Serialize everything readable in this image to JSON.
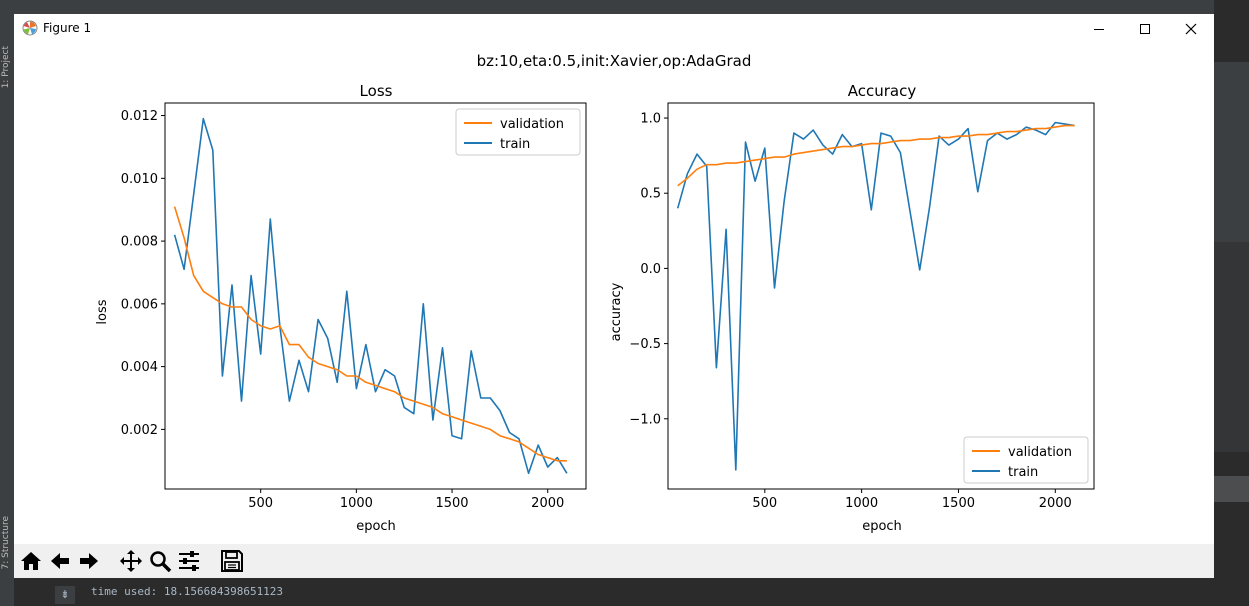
{
  "window": {
    "title": "Figure 1"
  },
  "ide": {
    "left_label_top": "1: Project",
    "left_label_bottom": "7: Structure",
    "console_text": "time used: 18.156684398651123"
  },
  "figure": {
    "suptitle": "bz:10,eta:0.5,init:Xavier,op:AdaGrad"
  },
  "colors": {
    "validation": "#ff7f0e",
    "train": "#1f77b4"
  },
  "toolbar": {
    "icons": [
      "home-icon",
      "back-arrow-icon",
      "forward-arrow-icon",
      "pan-icon",
      "zoom-icon",
      "subplots-icon",
      "save-icon"
    ]
  },
  "chart_data": [
    {
      "type": "line",
      "title": "Loss",
      "xlabel": "epoch",
      "ylabel": "loss",
      "xlim": [
        0,
        2200
      ],
      "ylim": [
        0.0001,
        0.0124
      ],
      "xticks": [
        500,
        1000,
        1500,
        2000
      ],
      "yticks": [
        0.002,
        0.004,
        0.006,
        0.008,
        0.01,
        0.012
      ],
      "ytick_labels": [
        "0.002",
        "0.004",
        "0.006",
        "0.008",
        "0.010",
        "0.012"
      ],
      "grid": false,
      "legend": "upper right",
      "series": [
        {
          "name": "validation",
          "x": [
            50,
            100,
            150,
            200,
            250,
            300,
            350,
            400,
            450,
            500,
            550,
            600,
            650,
            700,
            750,
            800,
            850,
            900,
            950,
            1000,
            1050,
            1100,
            1150,
            1200,
            1250,
            1300,
            1350,
            1400,
            1450,
            1500,
            1550,
            1600,
            1650,
            1700,
            1750,
            1800,
            1850,
            1900,
            1950,
            2000,
            2050,
            2100
          ],
          "values": [
            0.0091,
            0.0081,
            0.0069,
            0.0064,
            0.0062,
            0.006,
            0.0059,
            0.0059,
            0.0055,
            0.0053,
            0.0052,
            0.0053,
            0.0047,
            0.0047,
            0.0043,
            0.0041,
            0.004,
            0.0039,
            0.0037,
            0.0037,
            0.0035,
            0.0034,
            0.0033,
            0.0032,
            0.003,
            0.0029,
            0.0028,
            0.0027,
            0.0025,
            0.0024,
            0.0023,
            0.0022,
            0.0021,
            0.002,
            0.0018,
            0.0017,
            0.0016,
            0.0014,
            0.0012,
            0.0011,
            0.001,
            0.001
          ]
        },
        {
          "name": "train",
          "x": [
            50,
            100,
            150,
            200,
            250,
            300,
            350,
            400,
            450,
            500,
            550,
            600,
            650,
            700,
            750,
            800,
            850,
            900,
            950,
            1000,
            1050,
            1100,
            1150,
            1200,
            1250,
            1300,
            1350,
            1400,
            1450,
            1500,
            1550,
            1600,
            1650,
            1700,
            1750,
            1800,
            1850,
            1900,
            1950,
            2000,
            2050,
            2100
          ],
          "values": [
            0.0082,
            0.0071,
            0.0095,
            0.0119,
            0.0109,
            0.0037,
            0.0066,
            0.0029,
            0.0069,
            0.0044,
            0.0087,
            0.0053,
            0.0029,
            0.0042,
            0.0032,
            0.0055,
            0.0049,
            0.0035,
            0.0064,
            0.0033,
            0.0047,
            0.0032,
            0.0039,
            0.0037,
            0.0027,
            0.0025,
            0.006,
            0.0023,
            0.0046,
            0.0018,
            0.0017,
            0.0045,
            0.003,
            0.003,
            0.0026,
            0.0019,
            0.0017,
            0.0006,
            0.0015,
            0.0008,
            0.0011,
            0.0006
          ]
        }
      ]
    },
    {
      "type": "line",
      "title": "Accuracy",
      "xlabel": "epoch",
      "ylabel": "accuracy",
      "xlim": [
        0,
        2200
      ],
      "ylim": [
        -1.467,
        1.1
      ],
      "xticks": [
        500,
        1000,
        1500,
        2000
      ],
      "yticks": [
        1.0,
        0.5,
        0.0,
        -0.5,
        -1.0
      ],
      "ytick_labels": [
        "1.0",
        "0.5",
        "0.0",
        "−0.5",
        "−1.0"
      ],
      "grid": false,
      "legend": "lower right",
      "series": [
        {
          "name": "validation",
          "x": [
            50,
            100,
            150,
            200,
            250,
            300,
            350,
            400,
            450,
            500,
            550,
            600,
            650,
            700,
            750,
            800,
            850,
            900,
            950,
            1000,
            1050,
            1100,
            1150,
            1200,
            1250,
            1300,
            1350,
            1400,
            1450,
            1500,
            1550,
            1600,
            1650,
            1700,
            1750,
            1800,
            1850,
            1900,
            1950,
            2000,
            2050,
            2100
          ],
          "values": [
            0.55,
            0.6,
            0.66,
            0.69,
            0.69,
            0.7,
            0.7,
            0.71,
            0.72,
            0.73,
            0.74,
            0.74,
            0.76,
            0.77,
            0.78,
            0.79,
            0.8,
            0.81,
            0.81,
            0.82,
            0.83,
            0.83,
            0.84,
            0.85,
            0.85,
            0.86,
            0.86,
            0.87,
            0.87,
            0.88,
            0.88,
            0.89,
            0.89,
            0.9,
            0.91,
            0.91,
            0.92,
            0.93,
            0.93,
            0.94,
            0.95,
            0.95
          ]
        },
        {
          "name": "train",
          "x": [
            50,
            100,
            150,
            200,
            250,
            300,
            350,
            400,
            450,
            500,
            550,
            600,
            650,
            700,
            750,
            800,
            850,
            900,
            950,
            1000,
            1050,
            1100,
            1150,
            1200,
            1250,
            1300,
            1350,
            1400,
            1450,
            1500,
            1550,
            1600,
            1650,
            1700,
            1750,
            1800,
            1850,
            1900,
            1950,
            2000,
            2050,
            2100
          ],
          "values": [
            0.4,
            0.63,
            0.76,
            0.68,
            -0.66,
            0.26,
            -1.34,
            0.84,
            0.58,
            0.8,
            -0.13,
            0.45,
            0.9,
            0.86,
            0.92,
            0.82,
            0.76,
            0.89,
            0.81,
            0.83,
            0.39,
            0.9,
            0.88,
            0.77,
            0.38,
            -0.01,
            0.4,
            0.88,
            0.82,
            0.86,
            0.93,
            0.51,
            0.85,
            0.9,
            0.86,
            0.89,
            0.94,
            0.92,
            0.89,
            0.97,
            0.96,
            0.95
          ]
        }
      ]
    }
  ]
}
